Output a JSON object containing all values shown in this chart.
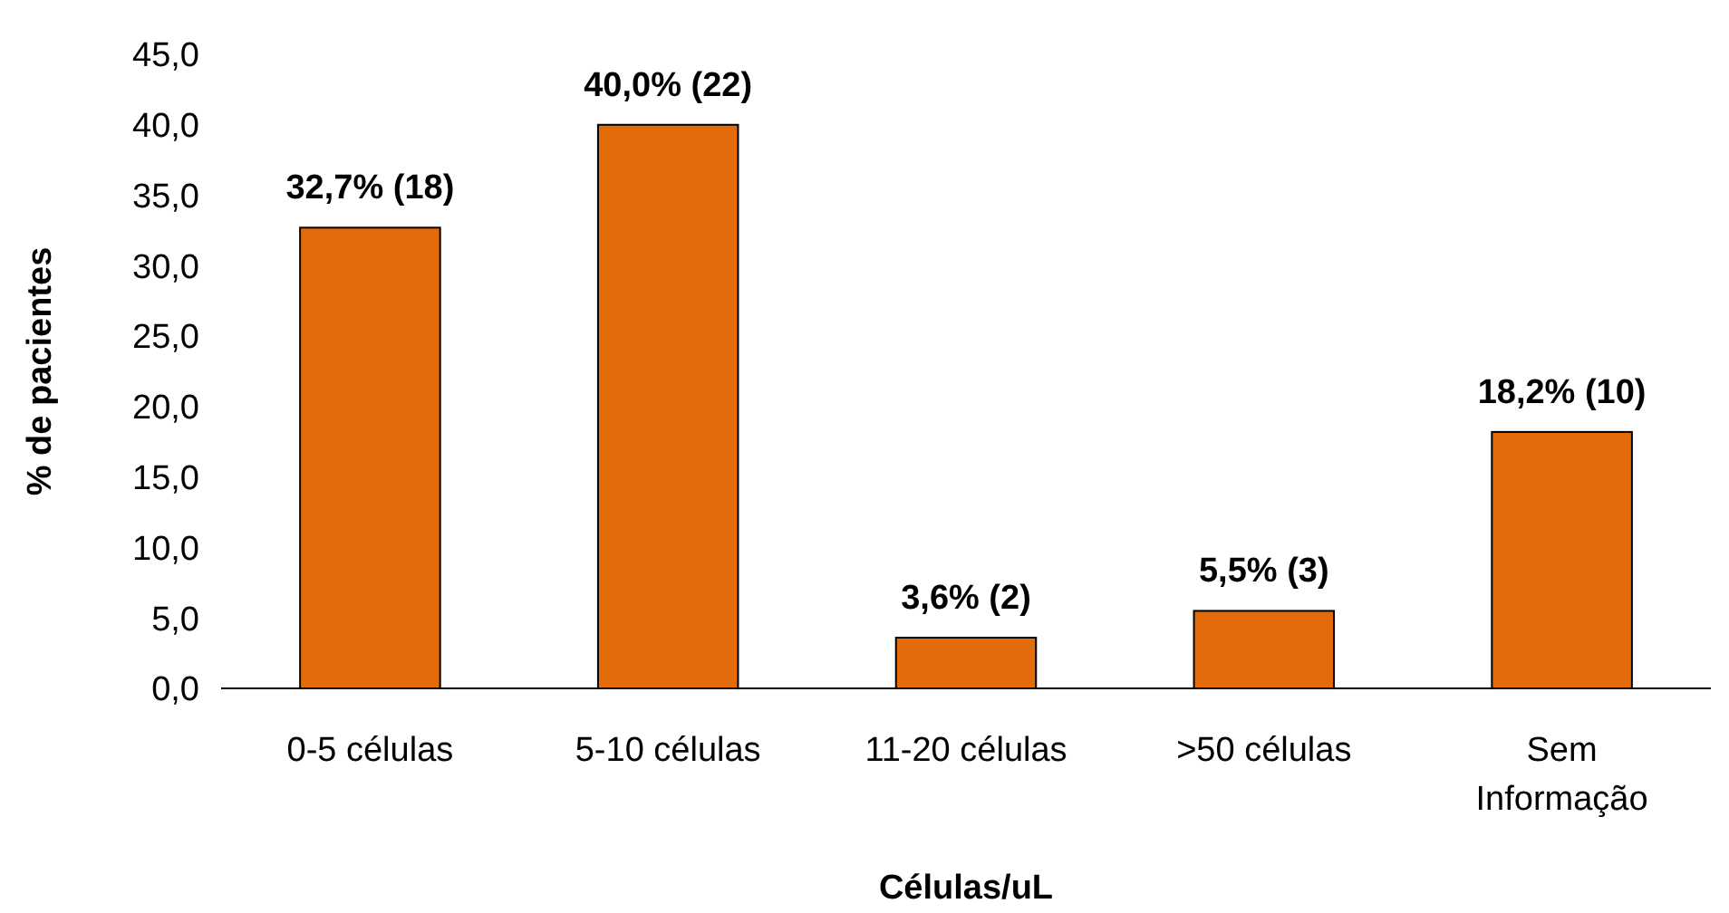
{
  "chart_data": {
    "type": "bar",
    "xlabel": "Células/uL",
    "ylabel": "% de pacientes",
    "categories": [
      "0-5 células",
      "5-10 células",
      "11-20 células",
      ">50 células",
      "Sem Informação"
    ],
    "values": [
      32.7,
      40.0,
      3.6,
      5.5,
      18.2
    ],
    "value_labels": [
      "32,7% (18)",
      "40,0% (22)",
      "3,6% (2)",
      "5,5% (3)",
      "18,2% (10)"
    ],
    "color": "#e36c0a",
    "ylim": [
      0,
      45
    ],
    "yticks": [
      {
        "value": 0,
        "label": "0,0"
      },
      {
        "value": 5,
        "label": "5,0"
      },
      {
        "value": 10,
        "label": "10,0"
      },
      {
        "value": 15,
        "label": "15,0"
      },
      {
        "value": 20,
        "label": "20,0"
      },
      {
        "value": 25,
        "label": "25,0"
      },
      {
        "value": 30,
        "label": "30,0"
      },
      {
        "value": 35,
        "label": "35,0"
      },
      {
        "value": 40,
        "label": "40,0"
      },
      {
        "value": 45,
        "label": "45,0"
      }
    ],
    "grid": false
  }
}
